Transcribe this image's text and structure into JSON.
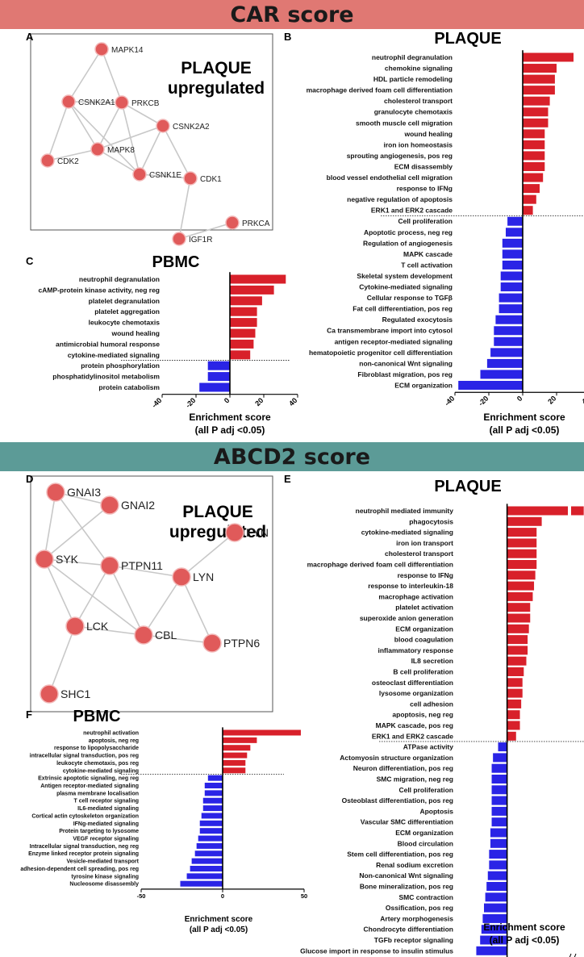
{
  "banners": {
    "car": "CAR score",
    "abcd2": "ABCD2 score"
  },
  "colors": {
    "up": "#d8202a",
    "down": "#2a24e6",
    "node": "#e05a5a",
    "edge": "#c8c8c8",
    "car_banner": "#e07873",
    "abcd_banner": "#5c9b97"
  },
  "panels": {
    "A": {
      "letter": "A",
      "title": [
        "PLAQUE",
        "upregulated"
      ]
    },
    "B": {
      "letter": "B",
      "title": "PLAQUE"
    },
    "C": {
      "letter": "C",
      "title": "PBMC"
    },
    "D": {
      "letter": "D",
      "title": [
        "PLAQUE",
        "upregulated"
      ]
    },
    "E": {
      "letter": "E",
      "title": "PLAQUE"
    },
    "F": {
      "letter": "F",
      "title": "PBMC"
    }
  },
  "networks": {
    "A": {
      "nodes": [
        "MAPK14",
        "CSNK2A1",
        "PRKCB",
        "CSNK2A2",
        "CDK2",
        "MAPK8",
        "CSNK1E",
        "CDK1",
        "PRKCA",
        "IGF1R"
      ],
      "edges": [
        [
          "MAPK14",
          "CSNK2A1"
        ],
        [
          "MAPK14",
          "PRKCB"
        ],
        [
          "CSNK2A1",
          "PRKCB"
        ],
        [
          "CSNK2A1",
          "MAPK8"
        ],
        [
          "CSNK2A1",
          "CDK2"
        ],
        [
          "CSNK2A1",
          "CSNK1E"
        ],
        [
          "PRKCB",
          "MAPK8"
        ],
        [
          "PRKCB",
          "CSNK1E"
        ],
        [
          "PRKCB",
          "CSNK2A2"
        ],
        [
          "CDK2",
          "MAPK8"
        ],
        [
          "MAPK8",
          "CSNK2A2"
        ],
        [
          "MAPK8",
          "CSNK1E"
        ],
        [
          "CSNK2A2",
          "CSNK1E"
        ],
        [
          "CSNK2A2",
          "CDK1"
        ],
        [
          "CSNK1E",
          "CDK1"
        ],
        [
          "CDK1",
          "IGF1R"
        ],
        [
          "IGF1R",
          "PRKCA"
        ]
      ]
    },
    "D": {
      "nodes": [
        "GNAI3",
        "GNAI2",
        "FYN",
        "SYK",
        "PTPN11",
        "LYN",
        "LCK",
        "CBL",
        "PTPN6",
        "SHC1"
      ],
      "edges": [
        [
          "GNAI3",
          "GNAI2"
        ],
        [
          "GNAI3",
          "SYK"
        ],
        [
          "GNAI3",
          "PTPN11"
        ],
        [
          "GNAI2",
          "SYK"
        ],
        [
          "SYK",
          "PTPN11"
        ],
        [
          "SYK",
          "LCK"
        ],
        [
          "SYK",
          "CBL"
        ],
        [
          "PTPN11",
          "LCK"
        ],
        [
          "PTPN11",
          "CBL"
        ],
        [
          "PTPN11",
          "LYN"
        ],
        [
          "LYN",
          "FYN"
        ],
        [
          "LYN",
          "CBL"
        ],
        [
          "LYN",
          "PTPN6"
        ],
        [
          "LCK",
          "CBL"
        ],
        [
          "LCK",
          "SHC1"
        ],
        [
          "CBL",
          "PTPN6"
        ]
      ]
    }
  },
  "chart_data": [
    {
      "panel": "B",
      "type": "bar",
      "orientation": "horizontal",
      "xlabel": [
        "Enrichment score",
        "(all P adj <0.05)"
      ],
      "xlim": [
        -40,
        40
      ],
      "xticks": [
        -40,
        -20,
        0,
        20,
        40
      ],
      "categories": [
        "neutrophil degranulation",
        "chemokine signaling",
        "HDL particle remodeling",
        "macrophage derived foam cell differentiation",
        "cholesterol transport",
        "granulocyte chemotaxis",
        "smooth muscle cell migration",
        "wound healing",
        "iron ion homeostasis",
        "sprouting angiogenesis, pos reg",
        "ECM disassembly",
        "blood vessel endothelial cell migration",
        "response to IFNg",
        "negative regulation of apoptosis",
        "ERK1 and ERK2 cascade",
        "Cell proliferation",
        "Apoptotic process, neg reg",
        "Regulation of angiogenesis",
        "MAPK cascade",
        "T cell activation",
        "Skeletal system development",
        "Cytokine-mediated signaling",
        "Cellular response to TGFβ",
        "Fat cell differentiation, pos reg",
        "Regulated exocytosis",
        "Ca transmembrane import into cytosol",
        "antigen receptor-mediated signaling",
        "hematopoietic progenitor cell differentiation",
        "non-canonical Wnt signaling",
        "Fibroblast migration, pos reg",
        "ECM organization"
      ],
      "values": [
        30,
        20,
        19,
        19,
        16,
        15,
        15,
        13,
        13,
        13,
        13,
        12,
        10,
        8,
        6,
        -9,
        -10,
        -12,
        -12,
        -12,
        -13,
        -13,
        -14,
        -14,
        -16,
        -17,
        -17,
        -19,
        -21,
        -25,
        -38
      ]
    },
    {
      "panel": "C",
      "type": "bar",
      "orientation": "horizontal",
      "xlabel": [
        "Enrichment score",
        "(all P adj <0.05)"
      ],
      "xlim": [
        -40,
        40
      ],
      "xticks": [
        -40,
        -20,
        0,
        20,
        40
      ],
      "categories": [
        "neutrophil degranulation",
        "cAMP-protein kinase activity, neg reg",
        "platelet degranulation",
        "platelet aggregation",
        "leukocyte chemotaxis",
        "wound healing",
        "antimicrobial humoral response",
        "cytokine-mediated signaling",
        "protein phosphorylation",
        "phosphatidylinositol metabolism",
        "protein catabolism"
      ],
      "values": [
        33,
        26,
        19,
        16,
        16,
        15,
        14,
        12,
        -13,
        -13,
        -18
      ]
    },
    {
      "panel": "E",
      "type": "bar",
      "orientation": "horizontal",
      "xlabel": [
        "Enrichment score",
        "(all P adj <0.05)"
      ],
      "xlim": [
        -40,
        130
      ],
      "xticks": [
        -40,
        -20,
        0,
        20,
        40,
        120,
        130
      ],
      "axis_break": [
        48,
        115
      ],
      "categories": [
        "neutrophil mediated immunity",
        "phagocytosis",
        "cytokine-mediated signaling",
        "iron ion transport",
        "cholesterol transport",
        "macrophage derived foam cell differentiation",
        "response to IFNg",
        "response to interleukin-18",
        "macrophage activation",
        "platelet activation",
        "superoxide anion generation",
        "ECM organization",
        "blood coagulation",
        "inflammatory response",
        "IL8 secretion",
        "B cell proliferation",
        "osteoclast differentiation",
        "lysosome organization",
        "cell adhesion",
        "apoptosis, neg reg",
        "MAPK cascade, pos reg",
        "ERK1 and ERK2 cascade",
        "ATPase activity",
        "Actomyosin structure organization",
        "Neuron differentiation, pos reg",
        "SMC migration, neg reg",
        "Cell proliferation",
        "Osteoblast differentiation, pos reg",
        "Apoptosis",
        "Vascular SMC differentiation",
        "ECM organization",
        "Blood circulation",
        "Stem cell differentiation, pos reg",
        "Renal sodium excretion",
        "Non-canonical Wnt signaling",
        "Bone mineralization, pos reg",
        "SMC contraction",
        "Ossification, pos reg",
        "Artery morphogenesis",
        "Chondrocyte differentiation",
        "TGFb receptor signaling",
        "Glucose import in response to insulin stimulus"
      ],
      "values": [
        125,
        27,
        23,
        23,
        23,
        23,
        22,
        21,
        20,
        18,
        18,
        17,
        16,
        16,
        15,
        13,
        12,
        12,
        11,
        10,
        10,
        7,
        -7,
        -11,
        -12,
        -12,
        -12,
        -12,
        -12,
        -12,
        -13,
        -13,
        -14,
        -14,
        -15,
        -16,
        -17,
        -18,
        -19,
        -20,
        -21,
        -24
      ]
    },
    {
      "panel": "F",
      "type": "bar",
      "orientation": "horizontal",
      "xlabel": [
        "Enrichment score",
        "(all P adj <0.05)"
      ],
      "xlim": [
        -50,
        50
      ],
      "xticks": [
        -50,
        0,
        50
      ],
      "categories": [
        "neutrophil activation",
        "apoptosis, neg reg",
        "response to lipopolysaccharide",
        "intracellular signal transduction, pos reg",
        "leukocyte chemotaxis, pos reg",
        "cytokine-mediated signaling",
        "Extrinsic apoptotic signaling, neg reg",
        "Antigen receptor-mediated signaling",
        "plasma membrane localisation",
        "T cell receptor signaling",
        "IL6-mediated signaling",
        "Cortical actin cytoskeleton organization",
        "IFNg-mediated signaling",
        "Protein targeting to lysosome",
        "VEGF receptor signaling",
        "Intracellular signal transduction, neg reg",
        "Enzyme linked receptor protein signaling",
        "Vesicle-mediated transport",
        "adhesion-dependent cell spreading, pos reg",
        "tyrosine kinase signaling",
        "Nucleosome disassembly"
      ],
      "values": [
        48,
        21,
        17,
        15,
        14,
        14,
        -9,
        -11,
        -11,
        -12,
        -12,
        -13,
        -14,
        -14,
        -15,
        -16,
        -17,
        -19,
        -20,
        -22,
        -26
      ]
    }
  ]
}
